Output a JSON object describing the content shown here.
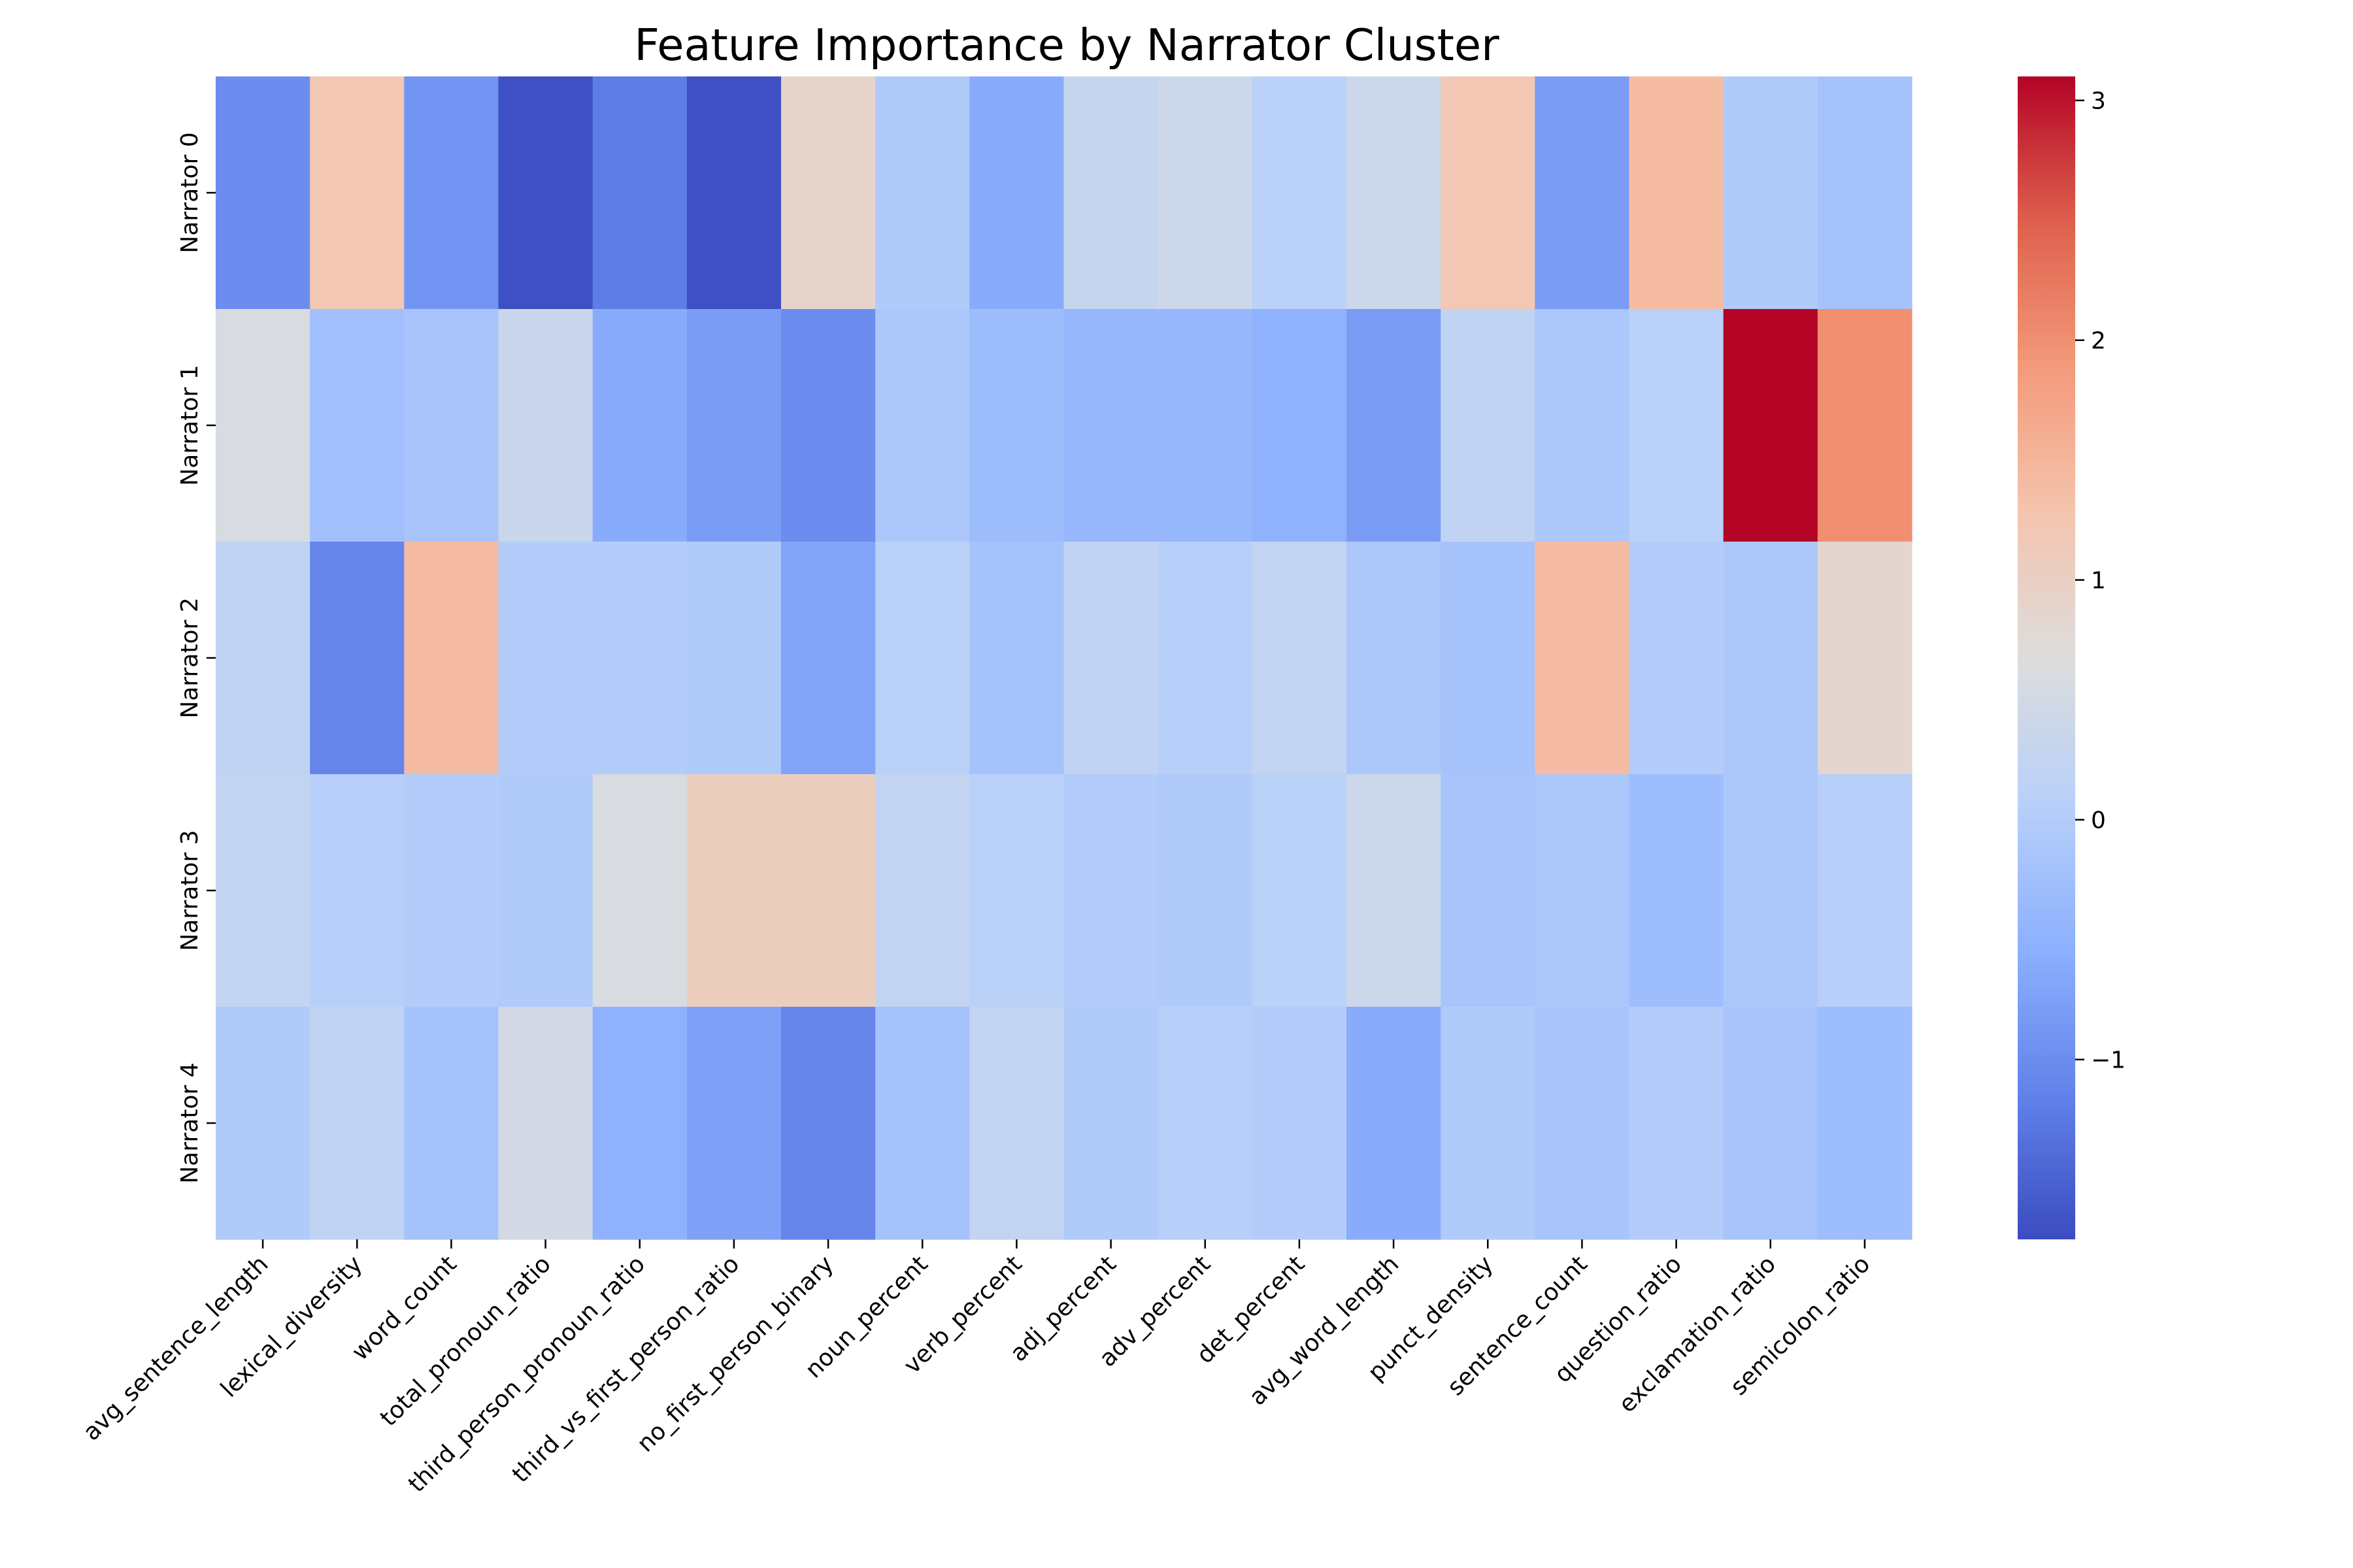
{
  "chart_data": {
    "type": "heatmap",
    "title": "Feature Importance by Narrator Cluster",
    "xlabel": "",
    "ylabel": "",
    "colormap": "coolwarm",
    "columns": [
      "avg_sentence_length",
      "lexical_diversity",
      "word_count",
      "total_pronoun_ratio",
      "third_person_pronoun_ratio",
      "third_vs_first_person_ratio",
      "no_first_person_binary",
      "noun_percent",
      "verb_percent",
      "adj_percent",
      "adv_percent",
      "det_percent",
      "avg_word_length",
      "punct_density",
      "sentence_count",
      "question_ratio",
      "exclamation_ratio",
      "semicolon_ratio"
    ],
    "rows": [
      "Narrator 0",
      "Narrator 1",
      "Narrator 2",
      "Narrator 3",
      "Narrator 4"
    ],
    "values": [
      [
        -1.0,
        1.2,
        -0.9,
        -1.7,
        -1.2,
        -1.7,
        0.9,
        -0.05,
        -0.6,
        0.3,
        0.4,
        0.1,
        0.4,
        1.2,
        -0.8,
        1.4,
        -0.05,
        -0.2
      ],
      [
        0.6,
        -0.25,
        -0.15,
        0.35,
        -0.6,
        -0.8,
        -1.0,
        -0.1,
        -0.3,
        -0.4,
        -0.4,
        -0.5,
        -0.8,
        0.2,
        -0.1,
        0.1,
        3.1,
        2.0
      ],
      [
        0.2,
        -1.1,
        1.4,
        0.0,
        0.0,
        -0.05,
        -0.7,
        0.1,
        -0.2,
        0.2,
        0.05,
        0.25,
        -0.1,
        -0.2,
        1.4,
        0.0,
        -0.1,
        0.85
      ],
      [
        0.25,
        0.05,
        0.0,
        -0.05,
        0.6,
        1.05,
        1.05,
        0.25,
        0.1,
        0.0,
        -0.05,
        0.1,
        0.4,
        -0.15,
        -0.1,
        -0.3,
        -0.1,
        0.05
      ],
      [
        -0.05,
        0.2,
        -0.2,
        0.5,
        -0.5,
        -0.75,
        -1.1,
        -0.2,
        0.25,
        -0.05,
        0.05,
        0.0,
        -0.6,
        -0.05,
        -0.15,
        0.0,
        -0.15,
        -0.3
      ]
    ],
    "colorbar": {
      "vmin": -1.75,
      "vmax": 3.1,
      "ticks": [
        3,
        2,
        1,
        0,
        -1
      ],
      "tick_labels": [
        "3",
        "2",
        "1",
        "0",
        "−1"
      ]
    }
  }
}
